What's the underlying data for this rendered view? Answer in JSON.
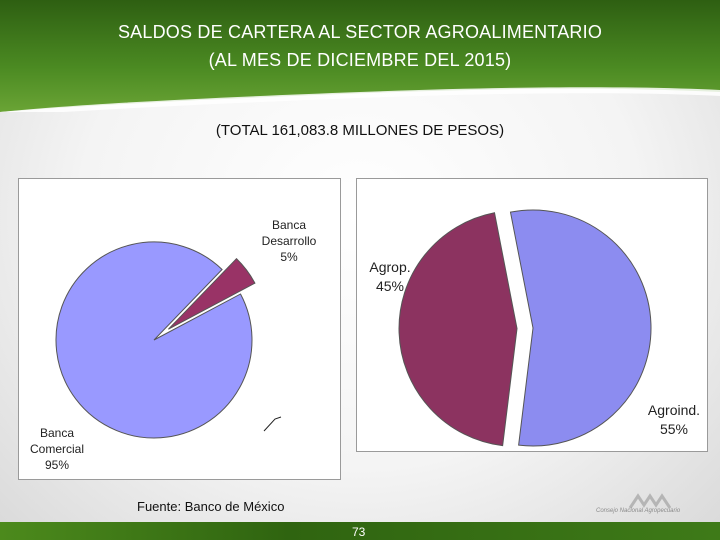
{
  "header": {
    "title_line1": "SALDOS DE CARTERA AL SECTOR AGROALIMENTARIO",
    "title_line2": "(AL MES DE DICIEMBRE DEL 2015)",
    "subtitle": "(TOTAL 161,083.8 MILLONES DE PESOS)"
  },
  "colors": {
    "header_green": "#3f7a1a",
    "slice_blue": "#9999ff",
    "slice_maroon": "#993366"
  },
  "chart_data": [
    {
      "type": "pie",
      "title": "",
      "slices": [
        {
          "label_line1": "Banca",
          "label_line2": "Comercial",
          "pct_label": "95%",
          "value": 95,
          "color": "#9999ff"
        },
        {
          "label_line1": "Banca",
          "label_line2": "Desarrollo",
          "pct_label": "5%",
          "value": 5,
          "color": "#993366"
        }
      ]
    },
    {
      "type": "pie",
      "title": "",
      "slices": [
        {
          "label": "Agroind.",
          "pct_label": "55%",
          "value": 55,
          "color": "#8c8cf0"
        },
        {
          "label": "Agrop.",
          "pct_label": "45%",
          "value": 45,
          "color": "#8c3360"
        }
      ]
    }
  ],
  "footer": {
    "source": "Fuente: Banco de México",
    "page_number": "73",
    "logo_text": "Consejo Nacional Agropecuario"
  }
}
